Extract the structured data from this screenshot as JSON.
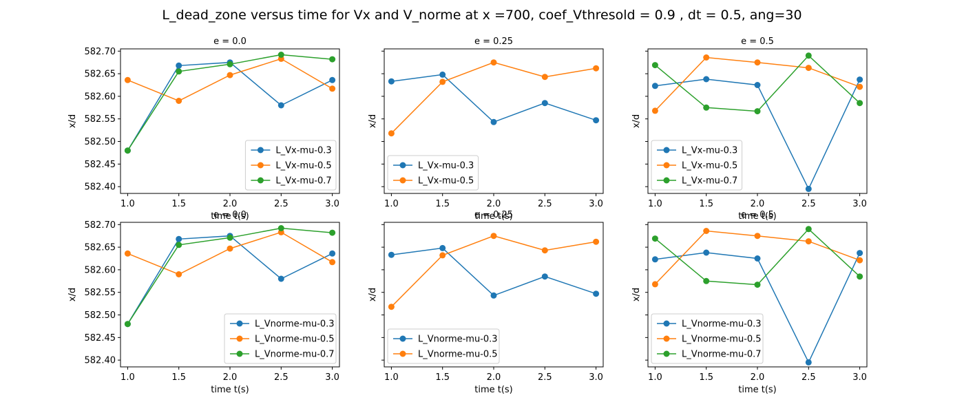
{
  "figure": {
    "suptitle": "L_dead_zone versus time for Vx and V_norme at x =700, coef_Vthresold = 0.9 , dt = 0.5, ang=30"
  },
  "colors": {
    "series1": "#1f77b4",
    "series2": "#ff7f0e",
    "series3": "#2ca02c",
    "axes": "#000000",
    "legend_border": "#cccccc"
  },
  "chart_data": [
    {
      "type": "line",
      "title": "e = 0.0",
      "xlabel": "time t(s)",
      "ylabel": "x/d",
      "x": [
        1.0,
        1.5,
        2.0,
        2.5,
        3.0
      ],
      "xticks": [
        "1.0",
        "1.5",
        "2.0",
        "2.5",
        "3.0"
      ],
      "xlim": [
        0.93,
        3.07
      ],
      "ylim": [
        582.385,
        582.705
      ],
      "yticks": [
        "582.40",
        "582.45",
        "582.50",
        "582.55",
        "582.60",
        "582.65",
        "582.70"
      ],
      "show_ytick_labels": true,
      "legend": "lower-right",
      "series": [
        {
          "name": "L_Vx-mu-0.3",
          "values": [
            582.48,
            582.668,
            582.675,
            582.58,
            582.636
          ]
        },
        {
          "name": "L_Vx-mu-0.5",
          "values": [
            582.636,
            582.59,
            582.647,
            582.683,
            582.617
          ]
        },
        {
          "name": "L_Vx-mu-0.7",
          "values": [
            582.48,
            582.655,
            582.671,
            582.692,
            582.682
          ]
        }
      ]
    },
    {
      "type": "line",
      "title": "e = 0.25",
      "xlabel": "time t(s)",
      "ylabel": "x/d",
      "x": [
        1.0,
        1.5,
        2.0,
        2.5,
        3.0
      ],
      "xticks": [
        "1.0",
        "1.5",
        "2.0",
        "2.5",
        "3.0"
      ],
      "xlim": [
        0.93,
        3.07
      ],
      "ylim": [
        582.385,
        582.705
      ],
      "yticks": [
        "582.40",
        "582.45",
        "582.50",
        "582.55",
        "582.60",
        "582.65",
        "582.70"
      ],
      "show_ytick_labels": false,
      "legend": "lower-left",
      "series": [
        {
          "name": "L_Vx-mu-0.3",
          "values": [
            582.633,
            582.648,
            582.543,
            582.585,
            582.547
          ]
        },
        {
          "name": "L_Vx-mu-0.5",
          "values": [
            582.518,
            582.632,
            582.675,
            582.643,
            582.662
          ]
        }
      ]
    },
    {
      "type": "line",
      "title": "e = 0.5",
      "xlabel": "time t(s)",
      "ylabel": "x/d",
      "x": [
        1.0,
        1.5,
        2.0,
        2.5,
        3.0
      ],
      "xticks": [
        "1.0",
        "1.5",
        "2.0",
        "2.5",
        "3.0"
      ],
      "xlim": [
        0.93,
        3.07
      ],
      "ylim": [
        582.385,
        582.705
      ],
      "yticks": [
        "582.40",
        "582.45",
        "582.50",
        "582.55",
        "582.60",
        "582.65",
        "582.70"
      ],
      "show_ytick_labels": false,
      "legend": "lower-left",
      "series": [
        {
          "name": "L_Vx-mu-0.3",
          "values": [
            582.623,
            582.638,
            582.625,
            582.395,
            582.637
          ]
        },
        {
          "name": "L_Vx-mu-0.5",
          "values": [
            582.568,
            582.686,
            582.675,
            582.663,
            582.621
          ]
        },
        {
          "name": "L_Vx-mu-0.7",
          "values": [
            582.669,
            582.575,
            582.567,
            582.69,
            582.585
          ]
        }
      ]
    },
    {
      "type": "line",
      "title": "e = 0.0",
      "xlabel": "time t(s)",
      "ylabel": "x/d",
      "x": [
        1.0,
        1.5,
        2.0,
        2.5,
        3.0
      ],
      "xticks": [
        "1.0",
        "1.5",
        "2.0",
        "2.5",
        "3.0"
      ],
      "xlim": [
        0.93,
        3.07
      ],
      "ylim": [
        582.385,
        582.705
      ],
      "yticks": [
        "582.40",
        "582.45",
        "582.50",
        "582.55",
        "582.60",
        "582.65",
        "582.70"
      ],
      "show_ytick_labels": true,
      "legend": "lower-right",
      "series": [
        {
          "name": "L_Vnorme-mu-0.3",
          "values": [
            582.48,
            582.668,
            582.675,
            582.58,
            582.636
          ]
        },
        {
          "name": "L_Vnorme-mu-0.5",
          "values": [
            582.636,
            582.59,
            582.647,
            582.683,
            582.617
          ]
        },
        {
          "name": "L_Vnorme-mu-0.7",
          "values": [
            582.48,
            582.655,
            582.671,
            582.692,
            582.682
          ]
        }
      ]
    },
    {
      "type": "line",
      "title": "e = 0.25",
      "xlabel": "time t(s)",
      "ylabel": "x/d",
      "x": [
        1.0,
        1.5,
        2.0,
        2.5,
        3.0
      ],
      "xticks": [
        "1.0",
        "1.5",
        "2.0",
        "2.5",
        "3.0"
      ],
      "xlim": [
        0.93,
        3.07
      ],
      "ylim": [
        582.385,
        582.705
      ],
      "yticks": [
        "582.40",
        "582.45",
        "582.50",
        "582.55",
        "582.60",
        "582.65",
        "582.70"
      ],
      "show_ytick_labels": false,
      "legend": "lower-left",
      "series": [
        {
          "name": "L_Vnorme-mu-0.3",
          "values": [
            582.633,
            582.648,
            582.543,
            582.585,
            582.547
          ]
        },
        {
          "name": "L_Vnorme-mu-0.5",
          "values": [
            582.518,
            582.632,
            582.675,
            582.643,
            582.662
          ]
        }
      ]
    },
    {
      "type": "line",
      "title": "e = 0.5",
      "xlabel": "time t(s)",
      "ylabel": "x/d",
      "x": [
        1.0,
        1.5,
        2.0,
        2.5,
        3.0
      ],
      "xticks": [
        "1.0",
        "1.5",
        "2.0",
        "2.5",
        "3.0"
      ],
      "xlim": [
        0.93,
        3.07
      ],
      "ylim": [
        582.385,
        582.705
      ],
      "yticks": [
        "582.40",
        "582.45",
        "582.50",
        "582.55",
        "582.60",
        "582.65",
        "582.70"
      ],
      "show_ytick_labels": false,
      "legend": "lower-left",
      "series": [
        {
          "name": "L_Vnorme-mu-0.3",
          "values": [
            582.623,
            582.638,
            582.625,
            582.395,
            582.637
          ]
        },
        {
          "name": "L_Vnorme-mu-0.5",
          "values": [
            582.568,
            582.686,
            582.675,
            582.663,
            582.621
          ]
        },
        {
          "name": "L_Vnorme-mu-0.7",
          "values": [
            582.669,
            582.575,
            582.567,
            582.69,
            582.585
          ]
        }
      ]
    }
  ]
}
